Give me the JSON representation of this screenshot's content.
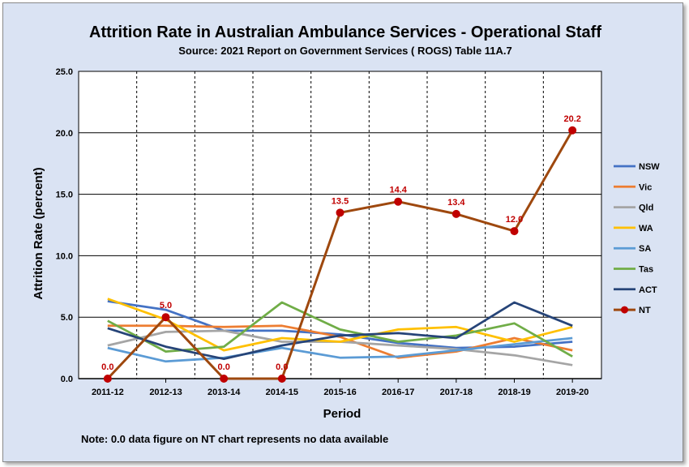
{
  "chart_data": {
    "type": "line",
    "title": "Attrition Rate in Australian Ambulance Services - Operational Staff",
    "subtitle": "Source: 2021 Report on Government Services ( ROGS) Table 11A.7",
    "xlabel": "Period",
    "ylabel": "Attrition Rate (percent)",
    "ylim": [
      0,
      25
    ],
    "yticks": [
      "0.0",
      "5.0",
      "10.0",
      "15.0",
      "20.0",
      "25.0"
    ],
    "grid": true,
    "legend_position": "right",
    "categories": [
      "2011-12",
      "2012-13",
      "2013-14",
      "2014-15",
      "2015-16",
      "2016-17",
      "2017-18",
      "2018-19",
      "2019-20"
    ],
    "series": [
      {
        "name": "NSW",
        "color": "#4472c4",
        "values": [
          6.3,
          5.6,
          3.9,
          3.9,
          3.6,
          2.9,
          2.5,
          2.6,
          3.0
        ]
      },
      {
        "name": "Vic",
        "color": "#ed7d31",
        "values": [
          4.3,
          4.3,
          4.2,
          4.3,
          3.4,
          1.7,
          2.2,
          3.3,
          2.3
        ]
      },
      {
        "name": "Qld",
        "color": "#a5a5a5",
        "values": [
          2.7,
          3.8,
          3.9,
          3.0,
          3.0,
          2.7,
          2.4,
          1.9,
          1.1
        ]
      },
      {
        "name": "WA",
        "color": "#ffc000",
        "values": [
          6.5,
          4.8,
          2.3,
          3.3,
          3.0,
          4.0,
          4.2,
          3.0,
          4.2
        ]
      },
      {
        "name": "SA",
        "color": "#5b9bd5",
        "values": [
          2.5,
          1.4,
          1.7,
          2.5,
          1.7,
          1.8,
          2.3,
          2.8,
          3.3
        ]
      },
      {
        "name": "Tas",
        "color": "#70ad47",
        "values": [
          4.7,
          2.2,
          2.6,
          6.2,
          4.0,
          3.0,
          3.5,
          4.5,
          1.8
        ]
      },
      {
        "name": "ACT",
        "color": "#264478",
        "values": [
          4.1,
          2.6,
          1.6,
          2.7,
          3.5,
          3.7,
          3.3,
          6.2,
          4.3
        ]
      },
      {
        "name": "NT",
        "color": "#9e480e",
        "marker": true,
        "values": [
          0.0,
          5.0,
          0.0,
          0.0,
          13.5,
          14.4,
          13.4,
          12.0,
          20.2
        ],
        "labels": [
          "0.0",
          "5.0",
          "0.0",
          "0.0",
          "13.5",
          "14.4",
          "13.4",
          "12.0",
          "20.2"
        ]
      }
    ],
    "note": "Note: 0.0 data figure on NT chart represents no data available"
  },
  "colors": {
    "background": "#dae3f3",
    "marker": "#c00000",
    "data_label": "#c00000"
  }
}
